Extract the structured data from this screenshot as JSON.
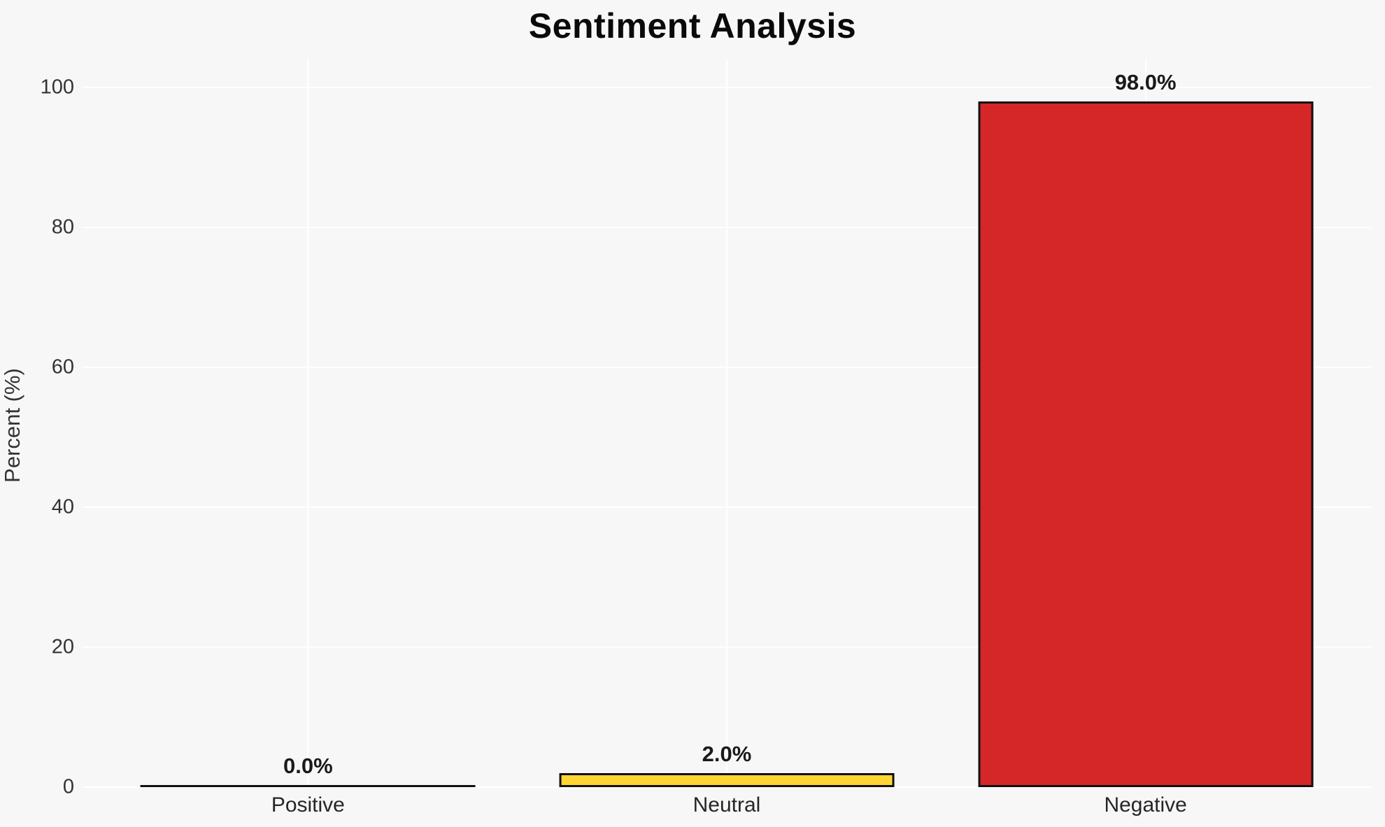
{
  "title": "Sentiment Analysis",
  "chart_data": {
    "type": "bar",
    "title": "Sentiment Analysis",
    "categories": [
      "Positive",
      "Neutral",
      "Negative"
    ],
    "values": [
      0.0,
      2.0,
      98.0
    ],
    "value_labels": [
      "0.0%",
      "2.0%",
      "98.0%"
    ],
    "bar_colors": [
      null,
      "#FFD633",
      "#D62728"
    ],
    "bar_edge_color": "#111111",
    "xlabel": "",
    "ylabel": "Percent (%)",
    "yticks": [
      0,
      20,
      40,
      60,
      80,
      100
    ],
    "ylim": [
      0,
      104
    ],
    "grid": true,
    "gridline_color": "#FFFFFF",
    "background_color": "#F7F7F7",
    "text_color": "#333333",
    "legend": null
  }
}
